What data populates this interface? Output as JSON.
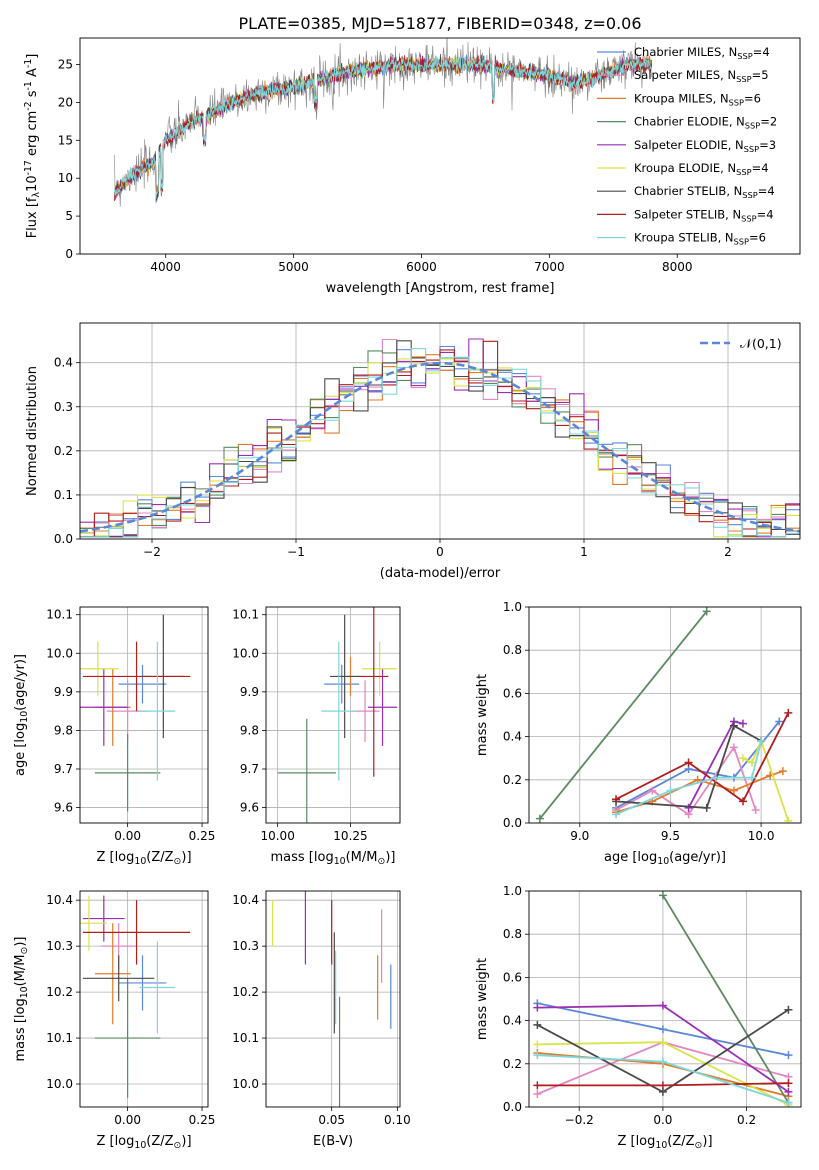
{
  "figure_title": "PLATE=0385, MJD=51877, FIBERID=0348, z=0.06",
  "colors": {
    "Chabrier MILES": "#5b87d9",
    "Salpeter MILES": "#e387c4",
    "Kroupa MILES": "#e07b2a",
    "Chabrier ELODIE": "#5a8a5f",
    "Salpeter ELODIE": "#9b2fb3",
    "Kroupa ELODIE": "#d9e34a",
    "Chabrier STELIB": "#4a4a4a",
    "Salpeter STELIB": "#b01e1e",
    "Kroupa STELIB": "#7fd6db",
    "normal": "#5b87d9"
  },
  "chart_data": [
    {
      "id": "spectrum",
      "type": "line",
      "title": "PLATE=0385, MJD=51877, FIBERID=0348, z=0.06",
      "xlabel": "wavelength [Angstrom, rest frame]",
      "ylabel": "Flux [f$_\\lambda$10$^{-17}$ erg cm$^{-2}$ s$^{-1}$ A$^{-1}$]",
      "xlim": [
        3330,
        8960
      ],
      "ylim": [
        0,
        28.5
      ],
      "xticks": [
        4000,
        5000,
        6000,
        7000,
        8000
      ],
      "yticks": [
        0,
        5,
        10,
        15,
        20,
        25
      ],
      "grid": false,
      "legend_position": "right",
      "series": [
        {
          "name": "Chabrier MILES, N$_{SSP}$=4"
        },
        {
          "name": "Salpeter MILES, N$_{SSP}$=5"
        },
        {
          "name": "Kroupa MILES, N$_{SSP}$=6"
        },
        {
          "name": "Chabrier ELODIE, N$_{SSP}$=2"
        },
        {
          "name": "Salpeter ELODIE, N$_{SSP}$=3"
        },
        {
          "name": "Kroupa ELODIE, N$_{SSP}$=4"
        },
        {
          "name": "Chabrier STELIB, N$_{SSP}$=4"
        },
        {
          "name": "Salpeter STELIB, N$_{SSP}$=4"
        },
        {
          "name": "Kroupa STELIB, N$_{SSP}$=6"
        }
      ],
      "data_envelope": {
        "x": [
          3600,
          3700,
          3800,
          3900,
          4000,
          4100,
          4200,
          4300,
          4400,
          4600,
          4800,
          5000,
          5200,
          5400,
          5600,
          5800,
          6000,
          6200,
          6400,
          6600,
          6800,
          7000,
          7200,
          7400,
          7600,
          7800
        ],
        "y": [
          8,
          10,
          11,
          12,
          15,
          16,
          17.5,
          18,
          19,
          20.5,
          21.5,
          22,
          23,
          24,
          24.5,
          25,
          25,
          25,
          25,
          24.5,
          24,
          23.5,
          22.5,
          23.5,
          25,
          25
        ]
      }
    },
    {
      "id": "residuals",
      "type": "step",
      "xlabel": "(data-model)/error",
      "ylabel": "Normed distribution",
      "xlim": [
        -2.5,
        2.5
      ],
      "ylim": [
        0,
        0.49
      ],
      "xticks": [
        -2,
        -1,
        0,
        1,
        2
      ],
      "yticks": [
        0.0,
        0.1,
        0.2,
        0.3,
        0.4
      ],
      "grid": true,
      "legend_position": "top-right",
      "normal_label": "$\\mathcal{N}(0,1)$"
    },
    {
      "id": "age-vs-Z",
      "type": "errorbar",
      "xlabel": "Z [log$_{10}$(Z/Z$_\\odot$)]",
      "ylabel": "age  [log$_{10}$(age/yr)]",
      "xlim": [
        -0.16,
        0.27
      ],
      "ylim": [
        9.56,
        10.12
      ],
      "xticks": [
        -0.25,
        0.0,
        0.25
      ],
      "yticks": [
        9.6,
        9.7,
        9.8,
        9.9,
        10.0,
        10.1
      ],
      "grid": true,
      "points": [
        {
          "series": "Chabrier MILES",
          "x": 0.05,
          "xerr": 0.08,
          "y": 9.92,
          "yerr": 0.05
        },
        {
          "series": "Salpeter MILES",
          "x": 0.0,
          "xerr": 0.07,
          "y": 9.85,
          "yerr": 0.08
        },
        {
          "series": "Kroupa MILES",
          "x": -0.05,
          "xerr": 0.06,
          "y": 9.86,
          "yerr": 0.1
        },
        {
          "series": "Chabrier ELODIE",
          "x": 0.0,
          "xerr": 0.11,
          "y": 9.69,
          "yerr": 0.1
        },
        {
          "series": "Salpeter ELODIE",
          "x": -0.08,
          "xerr": 0.08,
          "y": 9.86,
          "yerr": 0.1
        },
        {
          "series": "Kroupa ELODIE",
          "x": -0.1,
          "xerr": 0.07,
          "y": 9.96,
          "yerr": 0.07
        },
        {
          "series": "Chabrier STELIB",
          "x": 0.12,
          "xerr": 0.07,
          "y": 9.94,
          "yerr": 0.16
        },
        {
          "series": "Salpeter STELIB",
          "x": 0.03,
          "xerr": 0.18,
          "y": 9.94,
          "yerr": 0.09
        },
        {
          "series": "Kroupa STELIB",
          "x": 0.1,
          "xerr": 0.06,
          "y": 9.85,
          "yerr": 0.18
        }
      ]
    },
    {
      "id": "age-vs-mass",
      "type": "errorbar",
      "xlabel": "mass [log$_{10}$(M/M$_\\odot$)]",
      "ylabel": "",
      "xlim": [
        9.96,
        10.42
      ],
      "ylim": [
        9.56,
        10.12
      ],
      "xticks": [
        10.0,
        10.25
      ],
      "yticks": [
        9.6,
        9.7,
        9.8,
        9.9,
        10.0,
        10.1
      ],
      "grid": true,
      "points": [
        {
          "series": "Chabrier MILES",
          "x": 10.22,
          "xerr": 0.06,
          "y": 9.92,
          "yerr": 0.05
        },
        {
          "series": "Salpeter MILES",
          "x": 10.3,
          "xerr": 0.05,
          "y": 9.85,
          "yerr": 0.08
        },
        {
          "series": "Kroupa MILES",
          "x": 10.25,
          "xerr": 0.05,
          "y": 9.94,
          "yerr": 0.05
        },
        {
          "series": "Chabrier ELODIE",
          "x": 10.1,
          "xerr": 0.1,
          "y": 9.69,
          "yerr": 0.14
        },
        {
          "series": "Salpeter ELODIE",
          "x": 10.36,
          "xerr": 0.05,
          "y": 9.86,
          "yerr": 0.1
        },
        {
          "series": "Kroupa ELODIE",
          "x": 10.35,
          "xerr": 0.06,
          "y": 9.96,
          "yerr": 0.07
        },
        {
          "series": "Chabrier STELIB",
          "x": 10.23,
          "xerr": 0.05,
          "y": 9.94,
          "yerr": 0.16
        },
        {
          "series": "Salpeter STELIB",
          "x": 10.33,
          "xerr": 0.05,
          "y": 9.94,
          "yerr": 0.26
        },
        {
          "series": "Kroupa STELIB",
          "x": 10.21,
          "xerr": 0.06,
          "y": 9.85,
          "yerr": 0.18
        }
      ]
    },
    {
      "id": "weight-vs-age",
      "type": "line",
      "xlabel": "age  [log$_{10}$(age/yr)]",
      "ylabel": "mass weight",
      "xlim": [
        8.72,
        10.22
      ],
      "ylim": [
        0.0,
        1.0
      ],
      "xticks": [
        9.0,
        9.5,
        10.0
      ],
      "yticks": [
        0.0,
        0.2,
        0.4,
        0.6,
        0.8,
        1.0
      ],
      "grid": true,
      "series": [
        {
          "series": "Chabrier MILES",
          "x": [
            9.2,
            9.6,
            9.85,
            10.1
          ],
          "y": [
            0.07,
            0.25,
            0.21,
            0.47
          ]
        },
        {
          "series": "Salpeter MILES",
          "x": [
            9.2,
            9.4,
            9.6,
            9.85,
            9.97
          ],
          "y": [
            0.06,
            0.15,
            0.04,
            0.35,
            0.06
          ]
        },
        {
          "series": "Kroupa MILES",
          "x": [
            9.2,
            9.4,
            9.65,
            9.85,
            10.05,
            10.12
          ],
          "y": [
            0.05,
            0.1,
            0.2,
            0.15,
            0.22,
            0.24
          ]
        },
        {
          "series": "Chabrier ELODIE",
          "x": [
            8.78,
            9.7
          ],
          "y": [
            0.02,
            0.98
          ]
        },
        {
          "series": "Salpeter ELODIE",
          "x": [
            9.6,
            9.85,
            9.9
          ],
          "y": [
            0.07,
            0.47,
            0.46
          ]
        },
        {
          "series": "Kroupa ELODIE",
          "x": [
            9.9,
            9.95,
            10.0,
            10.15
          ],
          "y": [
            0.3,
            0.28,
            0.38,
            0.01
          ]
        },
        {
          "series": "Chabrier STELIB",
          "x": [
            9.2,
            9.7,
            9.85,
            10.0
          ],
          "y": [
            0.1,
            0.07,
            0.45,
            0.38
          ]
        },
        {
          "series": "Salpeter STELIB",
          "x": [
            9.2,
            9.6,
            9.9,
            10.15
          ],
          "y": [
            0.11,
            0.28,
            0.1,
            0.51
          ]
        },
        {
          "series": "Kroupa STELIB",
          "x": [
            9.2,
            9.5,
            9.75,
            9.95,
            10.0
          ],
          "y": [
            0.04,
            0.15,
            0.21,
            0.21,
            0.38
          ]
        }
      ]
    },
    {
      "id": "mass-vs-Z",
      "type": "errorbar",
      "xlabel": "Z [log$_{10}$(Z/Z$_\\odot$)]",
      "ylabel": "mass [log$_{10}$(M/M$_\\odot$)]",
      "xlim": [
        -0.16,
        0.27
      ],
      "ylim": [
        9.95,
        10.42
      ],
      "xticks": [
        -0.25,
        0.0,
        0.25
      ],
      "yticks": [
        10.0,
        10.1,
        10.2,
        10.3,
        10.4
      ],
      "grid": true,
      "points": [
        {
          "series": "Chabrier MILES",
          "x": 0.05,
          "xerr": 0.08,
          "y": 10.22,
          "yerr": 0.06
        },
        {
          "series": "Salpeter MILES",
          "x": -0.03,
          "xerr": 0.06,
          "y": 10.3,
          "yerr": 0.05
        },
        {
          "series": "Kroupa MILES",
          "x": -0.05,
          "xerr": 0.06,
          "y": 10.24,
          "yerr": 0.11
        },
        {
          "series": "Chabrier ELODIE",
          "x": 0.0,
          "xerr": 0.11,
          "y": 10.1,
          "yerr": 0.13
        },
        {
          "series": "Salpeter ELODIE",
          "x": -0.08,
          "xerr": 0.07,
          "y": 10.36,
          "yerr": 0.05
        },
        {
          "series": "Kroupa ELODIE",
          "x": -0.13,
          "xerr": 0.06,
          "y": 10.35,
          "yerr": 0.06
        },
        {
          "series": "Chabrier STELIB",
          "x": -0.03,
          "xerr": 0.12,
          "y": 10.23,
          "yerr": 0.05
        },
        {
          "series": "Salpeter STELIB",
          "x": 0.03,
          "xerr": 0.18,
          "y": 10.33,
          "yerr": 0.07
        },
        {
          "series": "Kroupa STELIB",
          "x": 0.1,
          "xerr": 0.06,
          "y": 10.21,
          "yerr": 0.1
        }
      ]
    },
    {
      "id": "mass-vs-EBV",
      "type": "errorbar",
      "xlabel": "E(B-V)",
      "ylabel": "",
      "xlim": [
        0.0,
        0.102
      ],
      "ylim": [
        9.95,
        10.42
      ],
      "xticks": [
        0.05,
        0.1
      ],
      "yticks": [
        10.0,
        10.1,
        10.2,
        10.3,
        10.4
      ],
      "grid": true,
      "points": [
        {
          "series": "Chabrier MILES",
          "x": 0.095,
          "xerr": 0,
          "y": 10.19,
          "yerr": 0.07
        },
        {
          "series": "Salpeter MILES",
          "x": 0.088,
          "xerr": 0,
          "y": 10.3,
          "yerr": 0.08
        },
        {
          "series": "Kroupa MILES",
          "x": 0.085,
          "xerr": 0,
          "y": 10.21,
          "yerr": 0.07
        },
        {
          "series": "Chabrier ELODIE",
          "x": 0.056,
          "xerr": 0,
          "y": 10.05,
          "yerr": 0.14
        },
        {
          "series": "Salpeter ELODIE",
          "x": 0.03,
          "xerr": 0,
          "y": 10.36,
          "yerr": 0.1
        },
        {
          "series": "Kroupa ELODIE",
          "x": 0.005,
          "xerr": 0,
          "y": 10.35,
          "yerr": 0.05
        },
        {
          "series": "Chabrier STELIB",
          "x": 0.052,
          "xerr": 0,
          "y": 10.22,
          "yerr": 0.11
        },
        {
          "series": "Salpeter STELIB",
          "x": 0.05,
          "xerr": 0,
          "y": 10.33,
          "yerr": 0.07
        },
        {
          "series": "Kroupa STELIB",
          "x": 0.053,
          "xerr": 0,
          "y": 10.21,
          "yerr": 0.08
        }
      ]
    },
    {
      "id": "weight-vs-Z",
      "type": "line",
      "xlabel": "Z [log$_{10}$(Z/Z$_\\odot$)]",
      "ylabel": "mass weight",
      "xlim": [
        -0.32,
        0.33
      ],
      "ylim": [
        0.0,
        1.0
      ],
      "xticks": [
        -0.2,
        0.0,
        0.2
      ],
      "yticks": [
        0.0,
        0.2,
        0.4,
        0.6,
        0.8,
        1.0
      ],
      "grid": true,
      "series": [
        {
          "series": "Chabrier MILES",
          "x": [
            -0.3,
            0.0,
            0.3
          ],
          "y": [
            0.48,
            0.36,
            0.24
          ]
        },
        {
          "series": "Salpeter MILES",
          "x": [
            -0.3,
            0.0,
            0.3
          ],
          "y": [
            0.06,
            0.3,
            0.14
          ]
        },
        {
          "series": "Kroupa MILES",
          "x": [
            -0.3,
            0.0,
            0.3
          ],
          "y": [
            0.25,
            0.2,
            0.05
          ]
        },
        {
          "series": "Chabrier ELODIE",
          "x": [
            0.0,
            0.3
          ],
          "y": [
            0.98,
            0.02
          ]
        },
        {
          "series": "Salpeter ELODIE",
          "x": [
            -0.3,
            0.0,
            0.3
          ],
          "y": [
            0.46,
            0.47,
            0.07
          ]
        },
        {
          "series": "Kroupa ELODIE",
          "x": [
            -0.3,
            0.0,
            0.3
          ],
          "y": [
            0.29,
            0.3,
            0.01
          ]
        },
        {
          "series": "Chabrier STELIB",
          "x": [
            -0.3,
            0.0,
            0.3
          ],
          "y": [
            0.38,
            0.07,
            0.45
          ]
        },
        {
          "series": "Salpeter STELIB",
          "x": [
            -0.3,
            0.0,
            0.3
          ],
          "y": [
            0.1,
            0.1,
            0.11
          ]
        },
        {
          "series": "Kroupa STELIB",
          "x": [
            -0.3,
            0.0,
            0.3
          ],
          "y": [
            0.24,
            0.21,
            0.02
          ]
        }
      ]
    }
  ]
}
